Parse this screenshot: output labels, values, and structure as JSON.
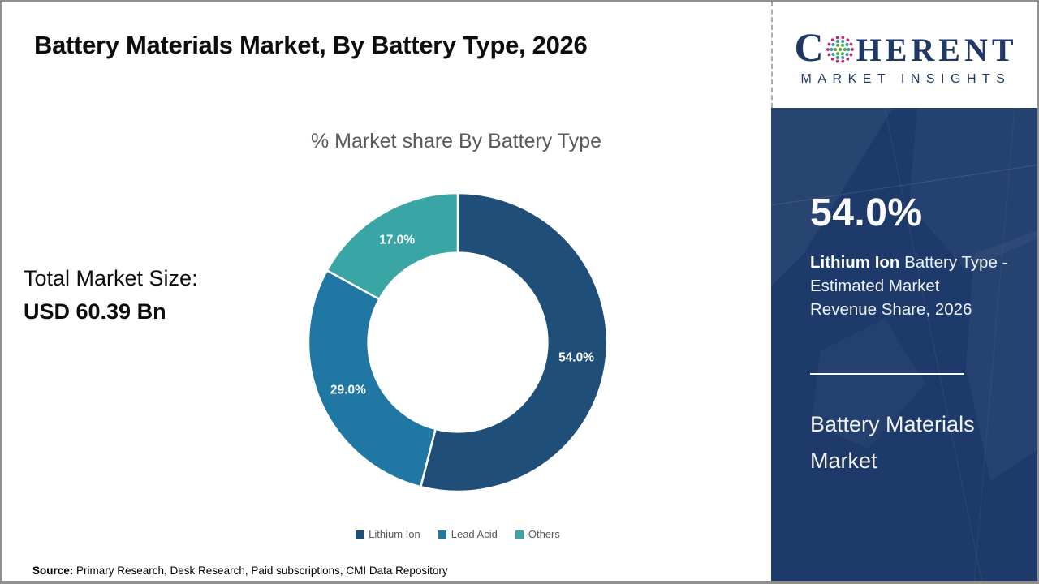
{
  "page": {
    "title": "Battery Materials Market, By Battery Type, 2026"
  },
  "logo": {
    "prefix": "C",
    "suffix": "HERENT",
    "tagline": "MARKET INSIGHTS",
    "brand_color": "#1F3864"
  },
  "chart_data": {
    "type": "pie",
    "donut": true,
    "title": "% Market share By Battery Type",
    "categories": [
      "Lithium Ion",
      "Lead Acid",
      "Others"
    ],
    "values": [
      54.0,
      29.0,
      17.0
    ],
    "labels": [
      "54.0%",
      "29.0%",
      "17.0%"
    ],
    "colors": [
      "#1F4E79",
      "#2077A4",
      "#3AA5A5"
    ],
    "start_angle_deg": 0,
    "direction": "clockwise",
    "legend_position": "bottom",
    "inner_radius_ratio": 0.6
  },
  "left_panel": {
    "total_label": "Total Market Size:",
    "total_value": "USD 60.39 Bn"
  },
  "sidebar": {
    "bg_color": "#1D3A6A",
    "stat_value": "54.0%",
    "desc_bold": "Lithium Ion",
    "desc_line1_rest": " Battery Type -",
    "desc_line2": "Estimated Market",
    "desc_line3": "Revenue Share, 2026",
    "market_lines": [
      "Battery Materials",
      "Market"
    ]
  },
  "footer": {
    "source_label": "Source:",
    "source_text": " Primary Research, Desk Research, Paid subscriptions, CMI Data Repository"
  }
}
